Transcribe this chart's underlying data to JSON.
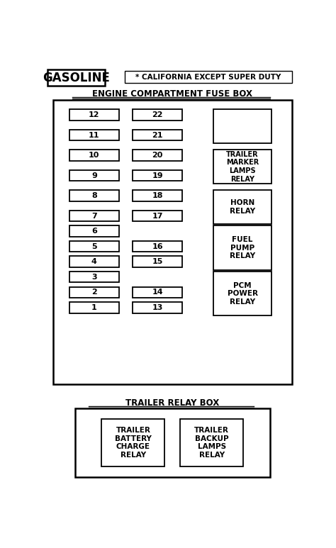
{
  "title_gasoline": "GASOLINE",
  "title_note": "* CALIFORNIA EXCEPT SUPER DUTY",
  "section1_title": "ENGINE COMPARTMENT FUSE BOX",
  "section2_title": "TRAILER RELAY BOX",
  "left_fuses": [
    "12",
    "11",
    "10",
    "9",
    "8",
    "7",
    "6",
    "5",
    "4",
    "3",
    "2",
    "1"
  ],
  "mid_fuses": [
    "22",
    "21",
    "20",
    "19",
    "18",
    "17",
    "16",
    "15",
    "14",
    "13"
  ],
  "trailer_relay_items": [
    "TRAILER\nBATTERY\nCHARGE\nRELAY",
    "TRAILER\nBACKUP\nLAMPS\nRELAY"
  ],
  "bg_color": "#ffffff",
  "box_color": "#000000",
  "text_color": "#000000"
}
